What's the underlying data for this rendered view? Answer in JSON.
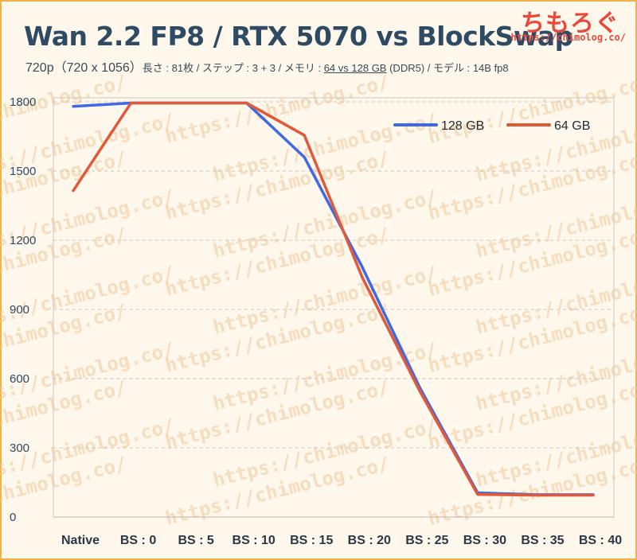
{
  "header": {
    "title": "Wan 2.2 FP8 / RTX 5070 vs BlockSwap",
    "subtitle_main": "720p（720 x 1056）",
    "subtitle_pre": "長さ : 81枚 / ステップ : 3 + 3 / メモリ : ",
    "subtitle_mem": "64 vs 128 GB",
    "subtitle_post": " (DDR5) / モデル : 14B fp8"
  },
  "brand": {
    "logo": "ちもろぐ",
    "url": "https://chimolog.co/"
  },
  "watermark": {
    "text": "https://chimolog.co/"
  },
  "colors": {
    "series_128": "#4169e1",
    "series_64": "#e05a3a",
    "title": "#2f4a63",
    "brand": "#e8493b"
  },
  "chart_data": {
    "type": "line",
    "title": "Wan 2.2 FP8 / RTX 5070 vs BlockSwap",
    "xlabel": "",
    "ylabel": "",
    "categories": [
      "Native",
      "BS : 0",
      "BS : 5",
      "BS : 10",
      "BS : 15",
      "BS : 20",
      "BS : 25",
      "BS : 30",
      "BS : 35",
      "BS : 40"
    ],
    "ylim": [
      0,
      1800
    ],
    "yticks": [
      0,
      300,
      600,
      900,
      1200,
      1500,
      1800
    ],
    "grid": true,
    "legend_position": "top-right",
    "series": [
      {
        "name": "128 GB",
        "color": "#4169e1",
        "values": [
          1780,
          1795,
          1795,
          1795,
          1560,
          1085,
          560,
          105,
          97,
          97
        ]
      },
      {
        "name": "64 GB",
        "color": "#e05a3a",
        "values": [
          1415,
          1795,
          1795,
          1795,
          1655,
          1040,
          545,
          98,
          95,
          95
        ]
      }
    ]
  }
}
